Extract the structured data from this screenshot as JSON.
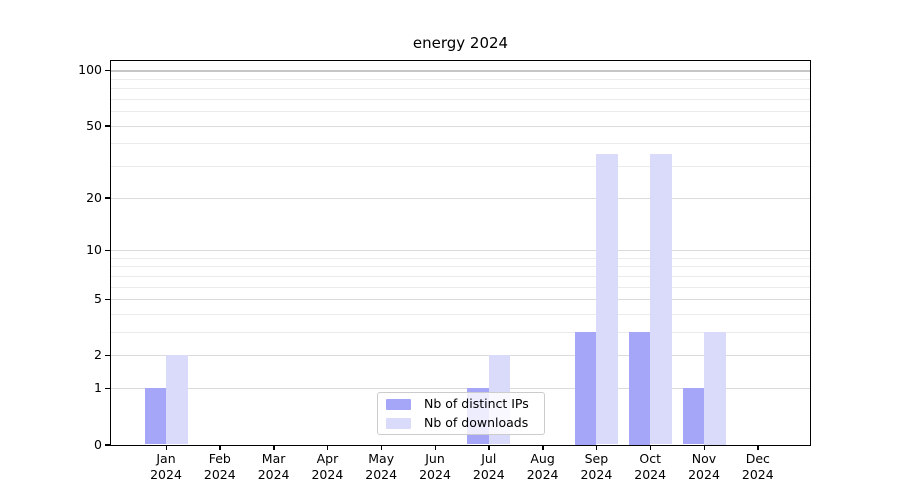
{
  "chart_data": {
    "type": "bar",
    "title": "energy 2024",
    "categories": [
      "Jan",
      "Feb",
      "Mar",
      "Apr",
      "May",
      "Jun",
      "Jul",
      "Aug",
      "Sep",
      "Oct",
      "Nov",
      "Dec"
    ],
    "year_label": "2024",
    "series": [
      {
        "key": "distinct-ips",
        "name": "Nb of distinct IPs",
        "color": "#a6a6f9",
        "values": [
          1,
          0,
          0,
          0,
          0,
          0,
          1,
          0,
          3,
          3,
          1,
          0
        ]
      },
      {
        "key": "downloads",
        "name": "Nb of downloads",
        "color": "#dadafb",
        "values": [
          2,
          0,
          0,
          0,
          0,
          0,
          2,
          0,
          35,
          35,
          3,
          0
        ]
      }
    ],
    "yscale": "log1p",
    "ylim": [
      0,
      112
    ],
    "y_major_ticks": [
      0,
      1,
      2,
      5,
      10,
      20,
      50,
      100
    ],
    "y_minor_ticks": [
      3,
      4,
      6,
      7,
      8,
      9,
      30,
      40,
      60,
      70,
      80,
      90
    ],
    "reference_line_y": 100,
    "grid": true,
    "legend_position": "lower center"
  },
  "style": {
    "background": "#ffffff",
    "grid_major_color": "#dbdbdb",
    "grid_minor_color": "#ebebeb",
    "grid_100_color": "#c6c6c6",
    "spine_color": "#000000",
    "legend_border_color": "#cccccc"
  }
}
